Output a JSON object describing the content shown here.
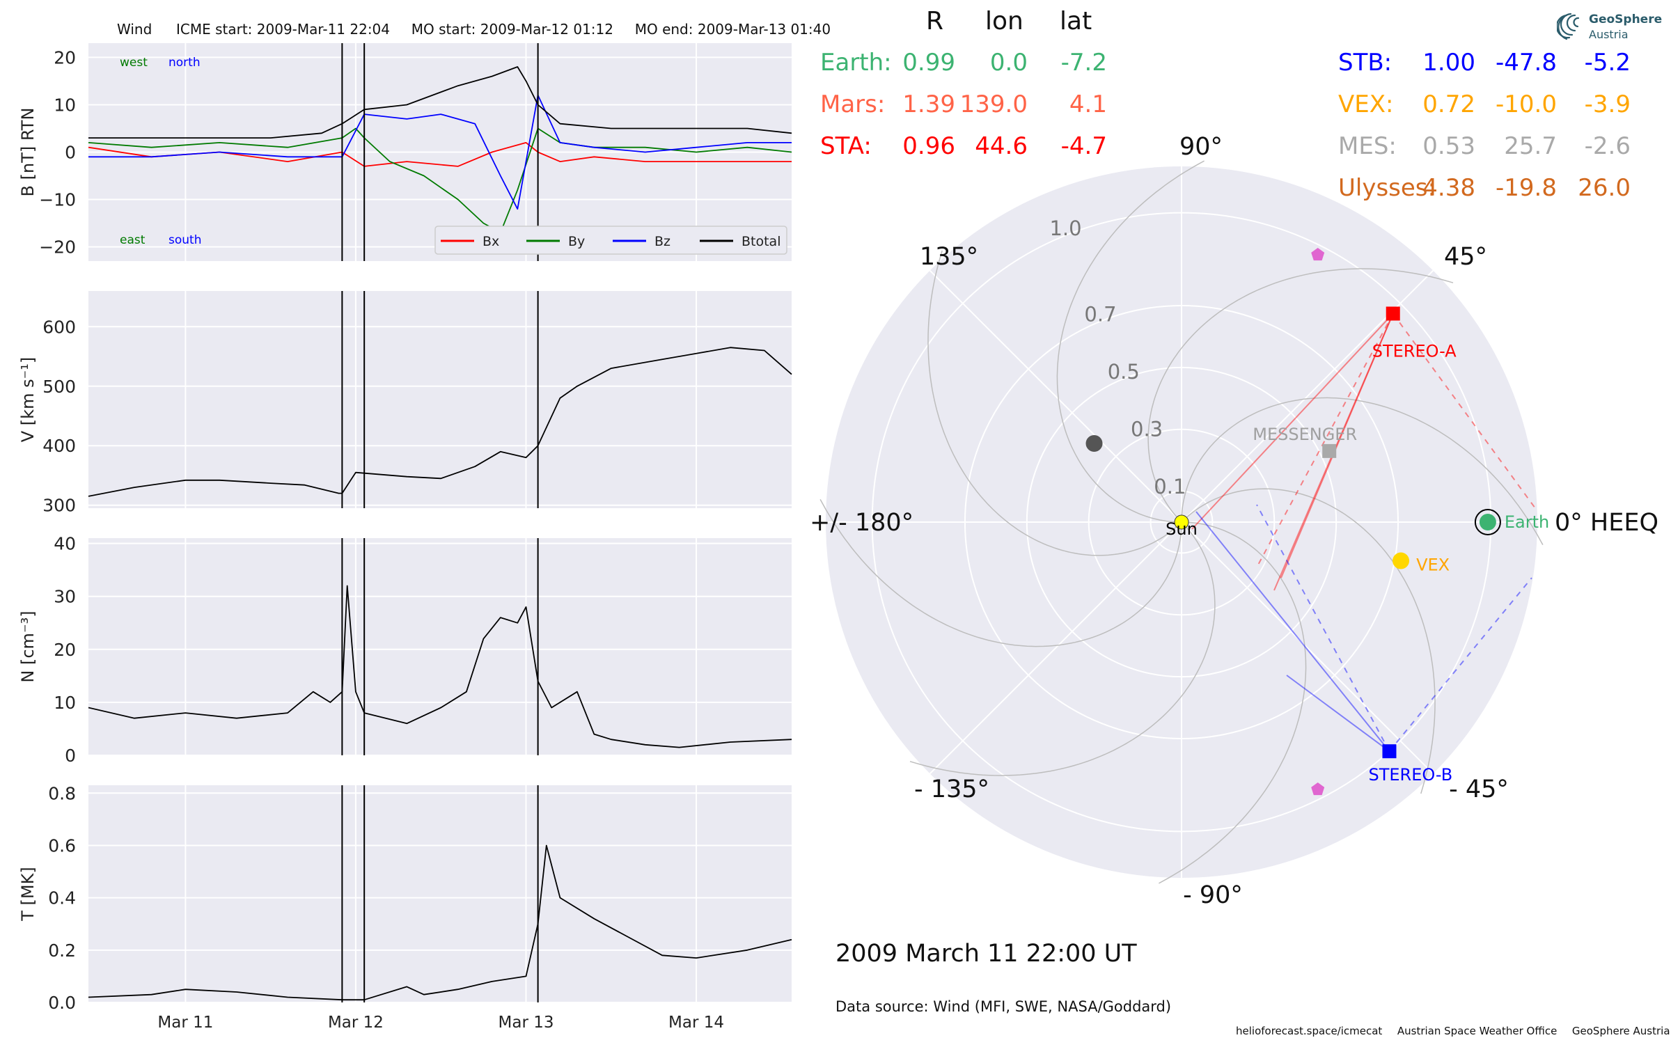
{
  "header": {
    "spacecraft": "Wind",
    "icme_start": "ICME start: 2009-Mar-11 22:04",
    "mo_start": "MO start: 2009-Mar-12 01:12",
    "mo_end": "MO end: 2009-Mar-13 01:40"
  },
  "colors": {
    "bx": "#ff0000",
    "by": "#007a00",
    "bz": "#0000ff",
    "btotal": "#000000",
    "earth": "#3cb371",
    "mars": "#ff6347",
    "sta": "#ff0000",
    "stb": "#0000ff",
    "vex": "#ffa500",
    "mes": "#a9a9a9",
    "ulysses": "#d2691e",
    "panel_bg": "#eaeaf2",
    "grid": "#ffffff",
    "polar_grid": "#bdbdbd"
  },
  "chart_data": [
    {
      "type": "line",
      "ylabel": "B [nT] RTN",
      "ylim": [
        -23,
        23
      ],
      "yticks": [
        "20",
        "10",
        "0",
        "−10",
        "−20"
      ],
      "ytick_values": [
        20,
        10,
        0,
        -10,
        -20
      ],
      "xticks": [
        "Mar 11",
        "Mar 12",
        "Mar 13",
        "Mar 14"
      ],
      "xtick_values": [
        11.0,
        12.0,
        13.0,
        14.0
      ],
      "xlim": [
        10.43,
        14.56
      ],
      "event_lines": [
        11.92,
        12.05,
        13.07
      ],
      "annotations": {
        "west": "west",
        "north": "north",
        "east": "east",
        "south": "south"
      },
      "legend": {
        "position": "lower-right",
        "entries": [
          "Bx",
          "By",
          "Bz",
          "Btotal"
        ]
      },
      "series": [
        {
          "name": "Bx",
          "color": "#ff0000",
          "x": [
            10.43,
            10.8,
            11.2,
            11.6,
            11.92,
            12.05,
            12.3,
            12.6,
            12.8,
            13.0,
            13.07,
            13.2,
            13.4,
            13.7,
            14.0,
            14.3,
            14.56
          ],
          "y": [
            1,
            -1,
            0,
            -2,
            0,
            -3,
            -2,
            -3,
            0,
            2,
            0,
            -2,
            -1,
            -2,
            -2,
            -2,
            -2
          ]
        },
        {
          "name": "By",
          "color": "#007a00",
          "x": [
            10.43,
            10.8,
            11.2,
            11.6,
            11.92,
            12.0,
            12.05,
            12.2,
            12.4,
            12.6,
            12.75,
            12.85,
            12.95,
            13.07,
            13.2,
            13.4,
            13.7,
            14.0,
            14.3,
            14.56
          ],
          "y": [
            2,
            1,
            2,
            1,
            3,
            5,
            3,
            -2,
            -5,
            -10,
            -15,
            -17,
            -8,
            5,
            2,
            1,
            1,
            0,
            1,
            0
          ]
        },
        {
          "name": "Bz",
          "color": "#0000ff",
          "x": [
            10.43,
            10.8,
            11.2,
            11.6,
            11.92,
            12.05,
            12.3,
            12.5,
            12.7,
            12.85,
            12.95,
            13.07,
            13.2,
            13.4,
            13.7,
            14.0,
            14.3,
            14.56
          ],
          "y": [
            -1,
            -1,
            0,
            -1,
            -1,
            8,
            7,
            8,
            6,
            -5,
            -12,
            12,
            2,
            1,
            0,
            1,
            2,
            2
          ]
        },
        {
          "name": "Btotal",
          "color": "#000000",
          "x": [
            10.43,
            10.8,
            11.2,
            11.5,
            11.8,
            11.92,
            12.05,
            12.3,
            12.6,
            12.8,
            12.95,
            13.0,
            13.07,
            13.2,
            13.5,
            14.0,
            14.3,
            14.56
          ],
          "y": [
            3,
            3,
            3,
            3,
            4,
            6,
            9,
            10,
            14,
            16,
            18,
            15,
            10,
            6,
            5,
            5,
            5,
            4
          ]
        }
      ]
    },
    {
      "type": "line",
      "ylabel": "V [km s⁻¹]",
      "ylim": [
        295,
        660
      ],
      "yticks": [
        "600",
        "500",
        "400",
        "300"
      ],
      "ytick_values": [
        600,
        500,
        400,
        300
      ],
      "xticks": [
        "Mar 11",
        "Mar 12",
        "Mar 13",
        "Mar 14"
      ],
      "xtick_values": [
        11.0,
        12.0,
        13.0,
        14.0
      ],
      "xlim": [
        10.43,
        14.56
      ],
      "event_lines": [
        11.92,
        12.05,
        13.07
      ],
      "series": [
        {
          "name": "",
          "color": "#000000",
          "x": [
            10.43,
            10.7,
            11.0,
            11.2,
            11.5,
            11.7,
            11.9,
            11.92,
            12.0,
            12.3,
            12.5,
            12.7,
            12.85,
            13.0,
            13.07,
            13.2,
            13.3,
            13.5,
            13.8,
            14.0,
            14.2,
            14.4,
            14.56
          ],
          "y": [
            315,
            330,
            342,
            342,
            337,
            334,
            320,
            320,
            355,
            348,
            345,
            365,
            390,
            380,
            400,
            480,
            500,
            530,
            545,
            555,
            565,
            560,
            520
          ]
        }
      ]
    },
    {
      "type": "line",
      "ylabel": "N [cm⁻³]",
      "ylim": [
        0,
        41
      ],
      "yticks": [
        "40",
        "30",
        "20",
        "10",
        "0"
      ],
      "ytick_values": [
        40,
        30,
        20,
        10,
        0
      ],
      "xticks": [
        "Mar 11",
        "Mar 12",
        "Mar 13",
        "Mar 14"
      ],
      "xtick_values": [
        11.0,
        12.0,
        13.0,
        14.0
      ],
      "xlim": [
        10.43,
        14.56
      ],
      "event_lines": [
        11.92,
        12.05,
        13.07
      ],
      "series": [
        {
          "name": "",
          "color": "#000000",
          "x": [
            10.43,
            10.7,
            11.0,
            11.3,
            11.6,
            11.75,
            11.85,
            11.92,
            11.95,
            12.0,
            12.05,
            12.3,
            12.5,
            12.65,
            12.75,
            12.85,
            12.95,
            13.0,
            13.07,
            13.15,
            13.3,
            13.4,
            13.5,
            13.7,
            13.9,
            14.2,
            14.56
          ],
          "y": [
            9,
            7,
            8,
            7,
            8,
            12,
            10,
            12,
            32,
            12,
            8,
            6,
            9,
            12,
            22,
            26,
            25,
            28,
            14,
            9,
            12,
            4,
            3,
            2,
            1.5,
            2.5,
            3
          ]
        }
      ]
    },
    {
      "type": "line",
      "ylabel": "T [MK]",
      "ylim": [
        0,
        0.83
      ],
      "yticks": [
        "0.8",
        "0.6",
        "0.4",
        "0.2",
        "0.0"
      ],
      "ytick_values": [
        0.8,
        0.6,
        0.4,
        0.2,
        0.0
      ],
      "xticks": [
        "Mar 11",
        "Mar 12",
        "Mar 13",
        "Mar 14"
      ],
      "xtick_values": [
        11.0,
        12.0,
        13.0,
        14.0
      ],
      "xlim": [
        10.43,
        14.56
      ],
      "event_lines": [
        11.92,
        12.05,
        13.07
      ],
      "series": [
        {
          "name": "",
          "color": "#000000",
          "x": [
            10.43,
            10.8,
            11.0,
            11.3,
            11.6,
            11.92,
            12.05,
            12.3,
            12.4,
            12.6,
            12.8,
            13.0,
            13.07,
            13.12,
            13.2,
            13.4,
            13.6,
            13.8,
            14.0,
            14.3,
            14.56
          ],
          "y": [
            0.02,
            0.03,
            0.05,
            0.04,
            0.02,
            0.01,
            0.01,
            0.06,
            0.03,
            0.05,
            0.08,
            0.1,
            0.3,
            0.6,
            0.4,
            0.32,
            0.25,
            0.18,
            0.17,
            0.2,
            0.24
          ]
        }
      ]
    },
    {
      "type": "scatter",
      "subtype": "polar",
      "theta_labels": [
        "90°",
        "45°",
        "0° HEEQ",
        "- 45°",
        "- 90°",
        "- 135°",
        "+/- 180°",
        "135°"
      ],
      "theta_values": [
        90,
        45,
        0,
        -45,
        -90,
        -135,
        180,
        135
      ],
      "r_labels": [
        "0.1",
        "0.3",
        "0.5",
        "0.7",
        "1.0"
      ],
      "r_values": [
        0.1,
        0.3,
        0.5,
        0.7,
        1.0
      ],
      "rlim": [
        0,
        1.15
      ],
      "points": [
        {
          "name": "Sun",
          "label": "Sun",
          "r": 0.0,
          "lon": 0.0,
          "color": "#ffff00",
          "marker": "circle"
        },
        {
          "name": "Earth",
          "label": "Earth",
          "r": 0.99,
          "lon": 0.0,
          "color": "#3cb371",
          "marker": "circle"
        },
        {
          "name": "VEX",
          "label": "VEX",
          "r": 0.72,
          "lon": -10.0,
          "color": "#ffd700",
          "marker": "circle"
        },
        {
          "name": "MESSENGER",
          "label": "MESSENGER",
          "r": 0.53,
          "lon": 25.7,
          "color": "#a9a9a9",
          "marker": "square"
        },
        {
          "name": "STEREO-A",
          "label": "STEREO-A",
          "r": 0.96,
          "lon": 44.6,
          "color": "#ff0000",
          "marker": "square"
        },
        {
          "name": "STEREO-B",
          "label": "STEREO-B",
          "r": 1.0,
          "lon": -47.8,
          "color": "#0000ff",
          "marker": "square"
        },
        {
          "name": "Mercury",
          "label": "",
          "r": 0.38,
          "lon": 138.0,
          "color": "#555555",
          "marker": "circle"
        },
        {
          "name": "Ulysses-upper",
          "label": "",
          "r": 0.97,
          "lon": 63.0,
          "color": "#e066d0",
          "marker": "pentagon"
        },
        {
          "name": "Ulysses-lower",
          "label": "",
          "r": 0.97,
          "lon": -63.0,
          "color": "#e066d0",
          "marker": "pentagon"
        }
      ]
    }
  ],
  "positions_table": {
    "header": {
      "r": "R",
      "lon": "lon",
      "lat": "lat"
    },
    "rows_left": [
      {
        "name": "Earth:",
        "r": "0.99",
        "lon": "0.0",
        "lat": "-7.2",
        "color": "#3cb371"
      },
      {
        "name": "Mars:",
        "r": "1.39",
        "lon": "139.0",
        "lat": "4.1",
        "color": "#ff6347"
      },
      {
        "name": "STA:",
        "r": "0.96",
        "lon": "44.6",
        "lat": "-4.7",
        "color": "#ff0000"
      }
    ],
    "rows_right": [
      {
        "name": "STB:",
        "r": "1.00",
        "lon": "-47.8",
        "lat": "-5.2",
        "color": "#0000ff"
      },
      {
        "name": "VEX:",
        "r": "0.72",
        "lon": "-10.0",
        "lat": "-3.9",
        "color": "#ffa500"
      },
      {
        "name": "MES:",
        "r": "0.53",
        "lon": "25.7",
        "lat": "-2.6",
        "color": "#a9a9a9"
      },
      {
        "name": "Ulysses:",
        "r": "4.38",
        "lon": "-19.8",
        "lat": "26.0",
        "color": "#d2691e"
      }
    ]
  },
  "date_label": "2009 March 11  22:00 UT",
  "data_source": "Data source: Wind (MFI, SWE, NASA/Goddard)",
  "footer": {
    "site": "helioforecast.space/icmecat",
    "office": "Austrian Space Weather Office",
    "org": "GeoSphere Austria"
  },
  "logo": {
    "line1": "GeoSphere",
    "line2": "Austria"
  }
}
